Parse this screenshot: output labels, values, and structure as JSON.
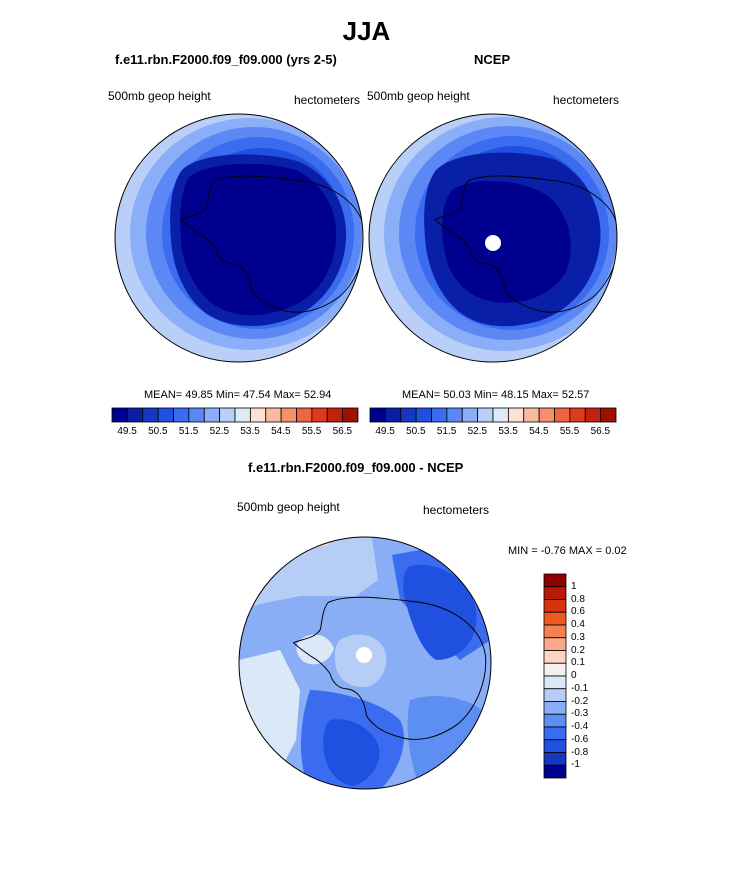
{
  "main_title": "JJA",
  "panels": {
    "left": {
      "title": "f.e11.rbn.F2000.f09_f09.000 (yrs 2-5)",
      "variable": "500mb geop height",
      "units": "hectometers",
      "stats_label": "MEAN=  49.85  Min=  47.54  Max=  52.94"
    },
    "right": {
      "title": "NCEP",
      "variable": "500mb geop height",
      "units": "hectometers",
      "stats_label": "MEAN=  50.03  Min=  48.15  Max=  52.57"
    },
    "diff": {
      "title": "f.e11.rbn.F2000.f09_f09.000 - NCEP",
      "variable": "500mb geop height",
      "units": "hectometers",
      "minmax_label": "MIN =  -0.76 MAX =    0.02"
    }
  },
  "chart_data": [
    {
      "type": "heatmap",
      "title": "f.e11.rbn.F2000.f09_f09.000 (yrs 2-5)",
      "projection": "south-polar-stereographic",
      "mean": 49.85,
      "min": 47.54,
      "max": 52.94,
      "colorbar": {
        "orientation": "horizontal",
        "ticks": [
          "49.5",
          "50.5",
          "51.5",
          "52.5",
          "53.5",
          "54.5",
          "55.5",
          "56.5"
        ],
        "levels": [
          49.5,
          50,
          50.5,
          51,
          51.5,
          52,
          52.5,
          53,
          53.5,
          54,
          54.5,
          55,
          55.5,
          56,
          56.5
        ],
        "colors": [
          "#00008f",
          "#0a1fa8",
          "#1438c4",
          "#2050e0",
          "#3b6cf0",
          "#5b88f5",
          "#8aaef7",
          "#b9cff7",
          "#dfeaf7",
          "#fde2d4",
          "#f9bba0",
          "#f5906b",
          "#f06541",
          "#e03a1c",
          "#c42010",
          "#a01000"
        ]
      }
    },
    {
      "type": "heatmap",
      "title": "NCEP",
      "projection": "south-polar-stereographic",
      "mean": 50.03,
      "min": 48.15,
      "max": 52.57,
      "colorbar": {
        "orientation": "horizontal",
        "ticks": [
          "49.5",
          "50.5",
          "51.5",
          "52.5",
          "53.5",
          "54.5",
          "55.5",
          "56.5"
        ],
        "levels": [
          49.5,
          50,
          50.5,
          51,
          51.5,
          52,
          52.5,
          53,
          53.5,
          54,
          54.5,
          55,
          55.5,
          56,
          56.5
        ],
        "colors": [
          "#00008f",
          "#0a1fa8",
          "#1438c4",
          "#2050e0",
          "#3b6cf0",
          "#5b88f5",
          "#8aaef7",
          "#b9cff7",
          "#dfeaf7",
          "#fde2d4",
          "#f9bba0",
          "#f5906b",
          "#f06541",
          "#e03a1c",
          "#c42010",
          "#a01000"
        ]
      }
    },
    {
      "type": "heatmap",
      "title": "f.e11.rbn.F2000.f09_f09.000 - NCEP",
      "projection": "south-polar-stereographic",
      "min": -0.76,
      "max": 0.02,
      "colorbar": {
        "orientation": "vertical",
        "ticks": [
          "1",
          "0.8",
          "0.6",
          "0.4",
          "0.3",
          "0.2",
          "0.1",
          "0",
          "-0.1",
          "-0.2",
          "-0.3",
          "-0.4",
          "-0.6",
          "-0.8",
          "-1"
        ],
        "colors": [
          "#8f0000",
          "#b81a0a",
          "#d8320e",
          "#f05a20",
          "#f58050",
          "#f8a988",
          "#fdd5c0",
          "#f3f0ee",
          "#dbe8f8",
          "#b6cdf5",
          "#8aaef5",
          "#5d8ef2",
          "#3b6cef",
          "#2050e0",
          "#1438c4",
          "#00008f"
        ]
      }
    }
  ]
}
